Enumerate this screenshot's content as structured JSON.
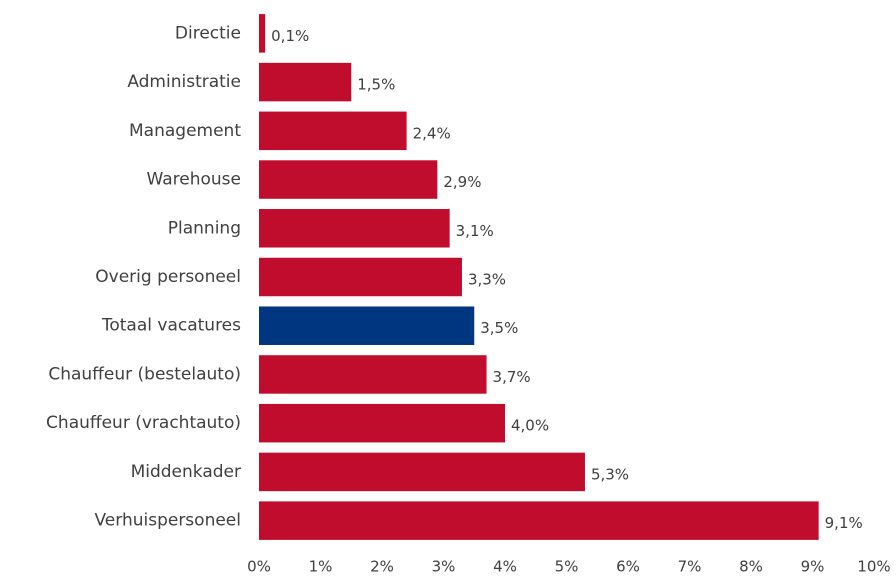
{
  "chart_data": {
    "type": "bar",
    "orientation": "horizontal",
    "categories": [
      "Directie",
      "Administratie",
      "Management",
      "Warehouse",
      "Planning",
      "Overig personeel",
      "Totaal vacatures",
      "Chauffeur (bestelauto)",
      "Chauffeur (vrachtauto)",
      "Middenkader",
      "Verhuispersoneel"
    ],
    "values": [
      0.1,
      1.5,
      2.4,
      2.9,
      3.1,
      3.3,
      3.5,
      3.7,
      4.0,
      5.3,
      9.1
    ],
    "value_labels": [
      "0,1%",
      "1,5%",
      "2,4%",
      "2,9%",
      "3,1%",
      "3,3%",
      "3,5%",
      "3,7%",
      "4,0%",
      "5,3%",
      "9,1%"
    ],
    "colors": [
      "#c00d2d",
      "#c00d2d",
      "#c00d2d",
      "#c00d2d",
      "#c00d2d",
      "#c00d2d",
      "#003580",
      "#c00d2d",
      "#c00d2d",
      "#c00d2d",
      "#c00d2d"
    ],
    "xlim": [
      0,
      10
    ],
    "xticks": [
      {
        "value": 0,
        "label": "0%"
      },
      {
        "value": 1,
        "label": "1%"
      },
      {
        "value": 2,
        "label": "2%"
      },
      {
        "value": 3,
        "label": "3%"
      },
      {
        "value": 4,
        "label": "4%"
      },
      {
        "value": 5,
        "label": "5%"
      },
      {
        "value": 6,
        "label": "6%"
      },
      {
        "value": 7,
        "label": "7%"
      },
      {
        "value": 8,
        "label": "8%"
      },
      {
        "value": 9,
        "label": "9%"
      },
      {
        "value": 10,
        "label": "10%"
      }
    ],
    "grid": false
  }
}
